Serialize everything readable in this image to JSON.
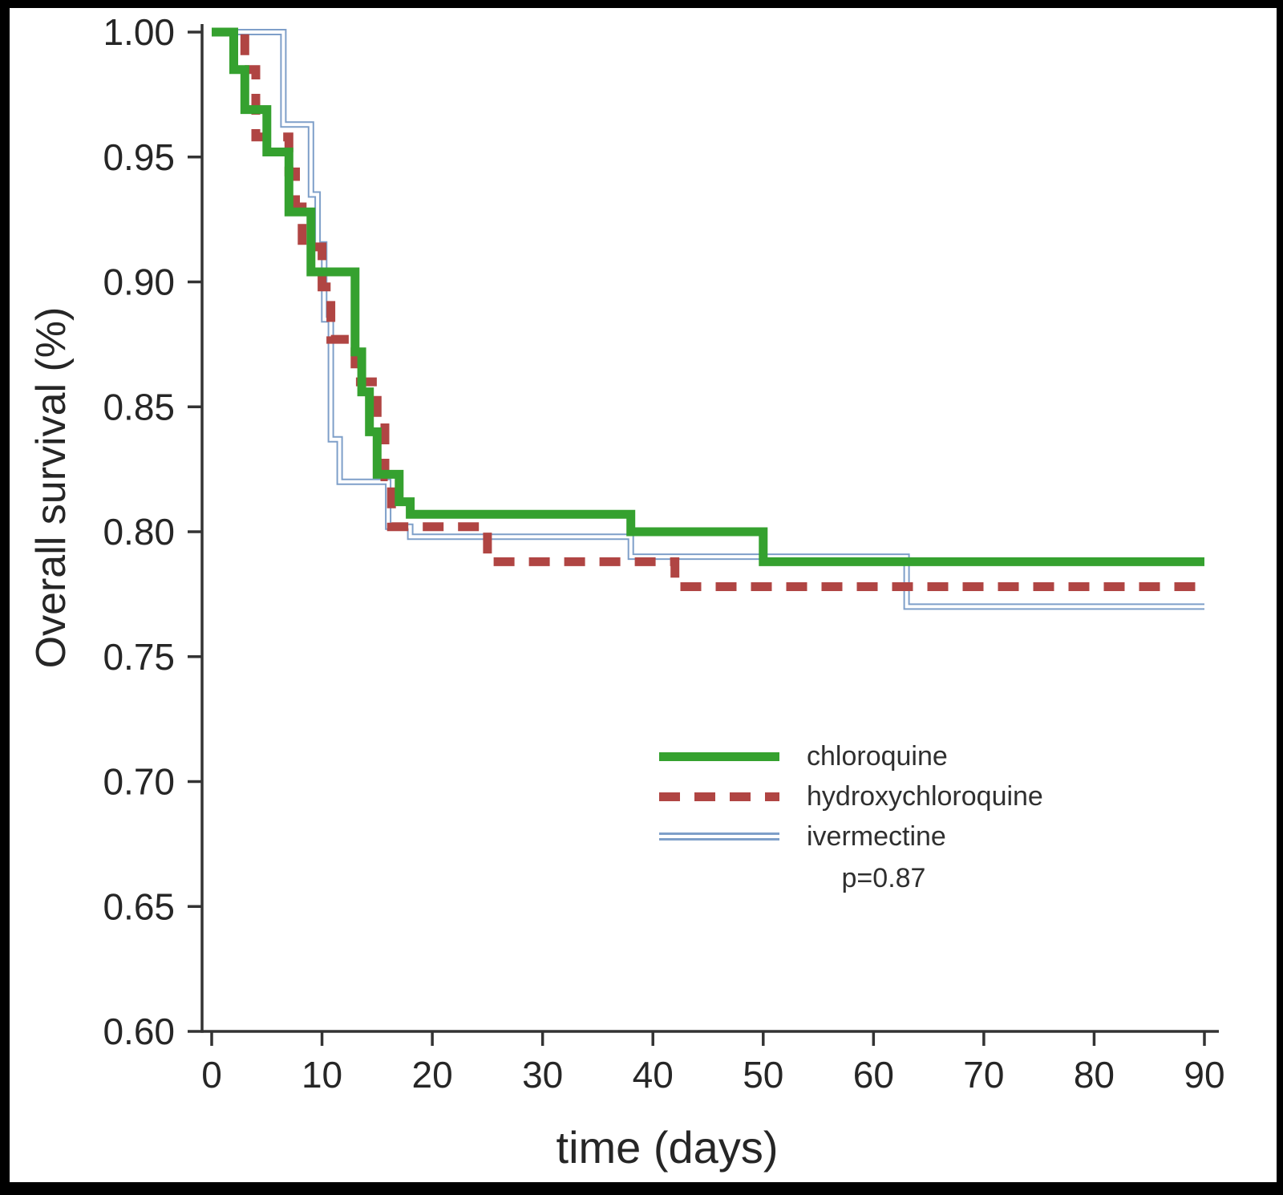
{
  "figure": {
    "background": "#ffffff",
    "frame_color": "#000000",
    "axis_color": "#333333",
    "text_color": "#262626"
  },
  "chart_data": {
    "type": "line",
    "subtype": "kaplan-meier-step",
    "title": "",
    "xlabel": "time (days)",
    "ylabel": "Overall survival (%)",
    "xlim": [
      0,
      90
    ],
    "ylim": [
      0.6,
      1.0
    ],
    "xticks": [
      0,
      10,
      20,
      30,
      40,
      50,
      60,
      70,
      80,
      90
    ],
    "yticks": [
      1.0,
      0.95,
      0.9,
      0.85,
      0.8,
      0.75,
      0.7,
      0.65,
      0.6
    ],
    "grid": false,
    "legend_position": "center-right",
    "annotation": "p=0.87",
    "series": [
      {
        "name": "chloroquine",
        "color": "#35a12f",
        "style": "solid-thick",
        "points": [
          [
            0,
            1.0
          ],
          [
            2,
            0.985
          ],
          [
            3,
            0.969
          ],
          [
            5,
            0.952
          ],
          [
            7,
            0.928
          ],
          [
            9,
            0.904
          ],
          [
            13,
            0.872
          ],
          [
            13.6,
            0.856
          ],
          [
            14.3,
            0.84
          ],
          [
            15,
            0.823
          ],
          [
            17,
            0.812
          ],
          [
            18,
            0.807
          ],
          [
            38,
            0.8
          ],
          [
            50,
            0.788
          ],
          [
            90,
            0.788
          ]
        ]
      },
      {
        "name": "hydroxychloroquine",
        "color": "#b04543",
        "style": "dashed",
        "points": [
          [
            0,
            1.0
          ],
          [
            3,
            0.985
          ],
          [
            4,
            0.958
          ],
          [
            7,
            0.944
          ],
          [
            7.6,
            0.93
          ],
          [
            8.2,
            0.914
          ],
          [
            10,
            0.898
          ],
          [
            10.8,
            0.877
          ],
          [
            13,
            0.86
          ],
          [
            15,
            0.845
          ],
          [
            15.7,
            0.822
          ],
          [
            16.3,
            0.802
          ],
          [
            25,
            0.788
          ],
          [
            42,
            0.778
          ],
          [
            90,
            0.778
          ]
        ]
      },
      {
        "name": "ivermectine",
        "color": "#7e9fc9",
        "style": "double-thin",
        "points": [
          [
            0,
            1.0
          ],
          [
            6.5,
            0.963
          ],
          [
            9,
            0.935
          ],
          [
            9.6,
            0.915
          ],
          [
            10.2,
            0.885
          ],
          [
            10.8,
            0.837
          ],
          [
            11.6,
            0.82
          ],
          [
            16,
            0.802
          ],
          [
            18,
            0.798
          ],
          [
            38,
            0.79
          ],
          [
            63,
            0.77
          ],
          [
            90,
            0.77
          ]
        ]
      }
    ]
  }
}
